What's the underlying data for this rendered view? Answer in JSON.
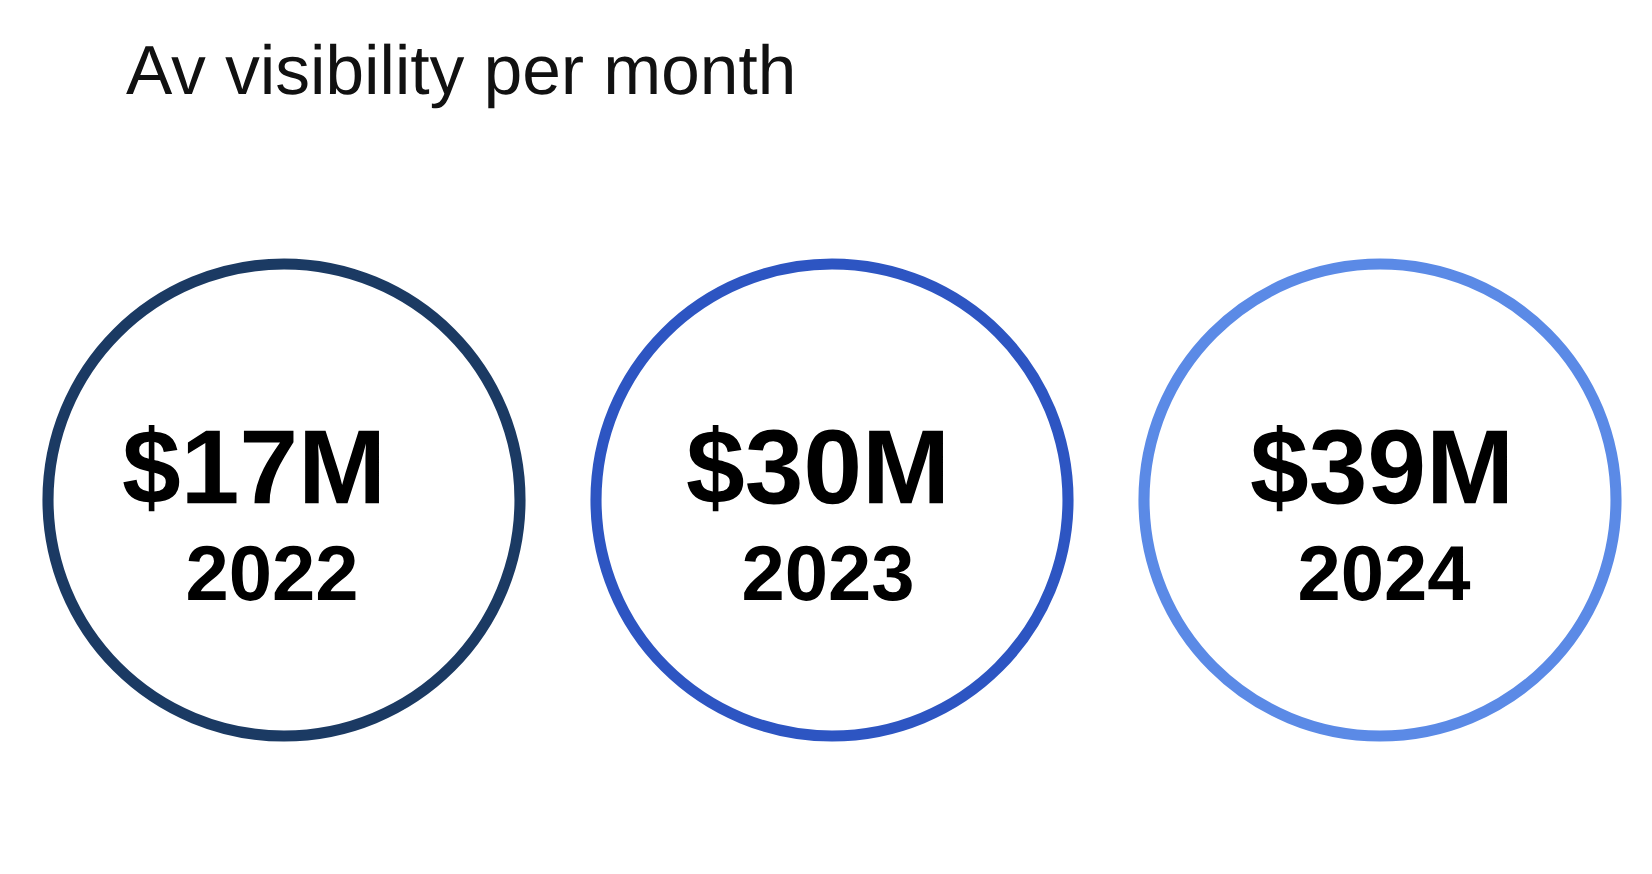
{
  "chart_data": {
    "type": "other",
    "title": "Av visibility per month",
    "categories": [
      "2022",
      "2023",
      "2024"
    ],
    "values": [
      17,
      30,
      39
    ],
    "value_labels": [
      "$17M",
      "$30M",
      "$39M"
    ],
    "colors": [
      "#1b3a63",
      "#2d55c2",
      "#5b8ae6"
    ]
  }
}
